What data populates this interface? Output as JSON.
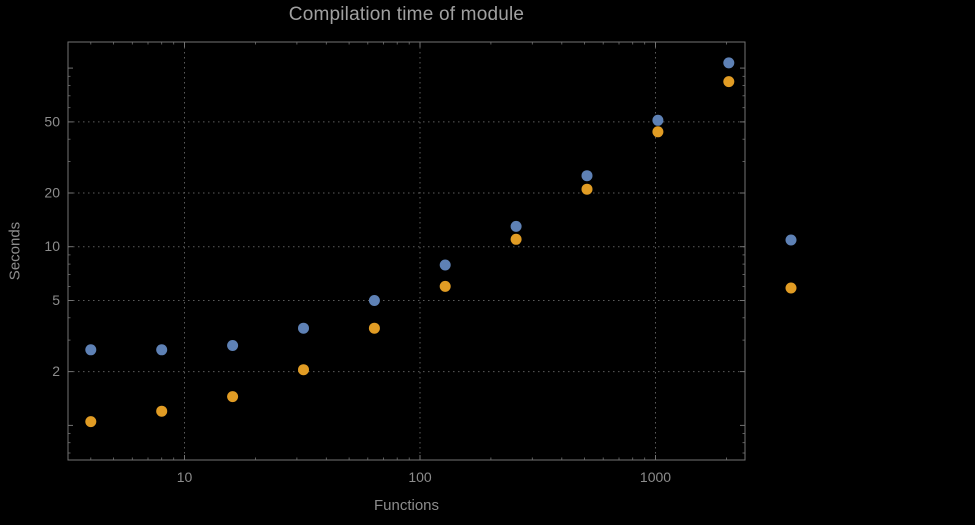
{
  "chart_data": {
    "type": "scatter",
    "title": "Compilation time of module",
    "xlabel": "Functions",
    "ylabel": "Seconds",
    "x_scale": "log",
    "y_scale": "log",
    "xlim": [
      3.2,
      2400
    ],
    "ylim": [
      0.64,
      140
    ],
    "grid": "dotted-at-major-ticks",
    "x_ticks": [
      {
        "value": 10,
        "label": "10"
      },
      {
        "value": 100,
        "label": "100"
      },
      {
        "value": 1000,
        "label": "1000"
      }
    ],
    "y_ticks": [
      {
        "value": 2,
        "label": "2"
      },
      {
        "value": 5,
        "label": "5"
      },
      {
        "value": 10,
        "label": "10"
      },
      {
        "value": 20,
        "label": "20"
      },
      {
        "value": 50,
        "label": "50"
      }
    ],
    "series": [
      {
        "name": "blue",
        "color": "#5e81b5",
        "x": [
          4,
          8,
          16,
          32,
          64,
          128,
          256,
          512,
          1024,
          2048
        ],
        "y": [
          2.65,
          2.65,
          2.8,
          3.5,
          5.0,
          7.9,
          13,
          25,
          51,
          107
        ]
      },
      {
        "name": "orange",
        "color": "#e19c24",
        "x": [
          4,
          8,
          16,
          32,
          64,
          128,
          256,
          512,
          1024,
          2048
        ],
        "y": [
          1.05,
          1.2,
          1.45,
          2.05,
          3.5,
          6.0,
          11,
          21,
          44,
          84
        ]
      }
    ],
    "legend": {
      "position": "right-outside",
      "entries": [
        {
          "label": "",
          "color": "#5e81b5"
        },
        {
          "label": "",
          "color": "#e19c24"
        }
      ]
    }
  },
  "colors": {
    "background": "#000000",
    "frame": "#737373",
    "grid": "#5c5c5c",
    "tick_label": "#8c8c8c",
    "title": "#a0a0a0",
    "axis_label": "#8c8c8c"
  }
}
